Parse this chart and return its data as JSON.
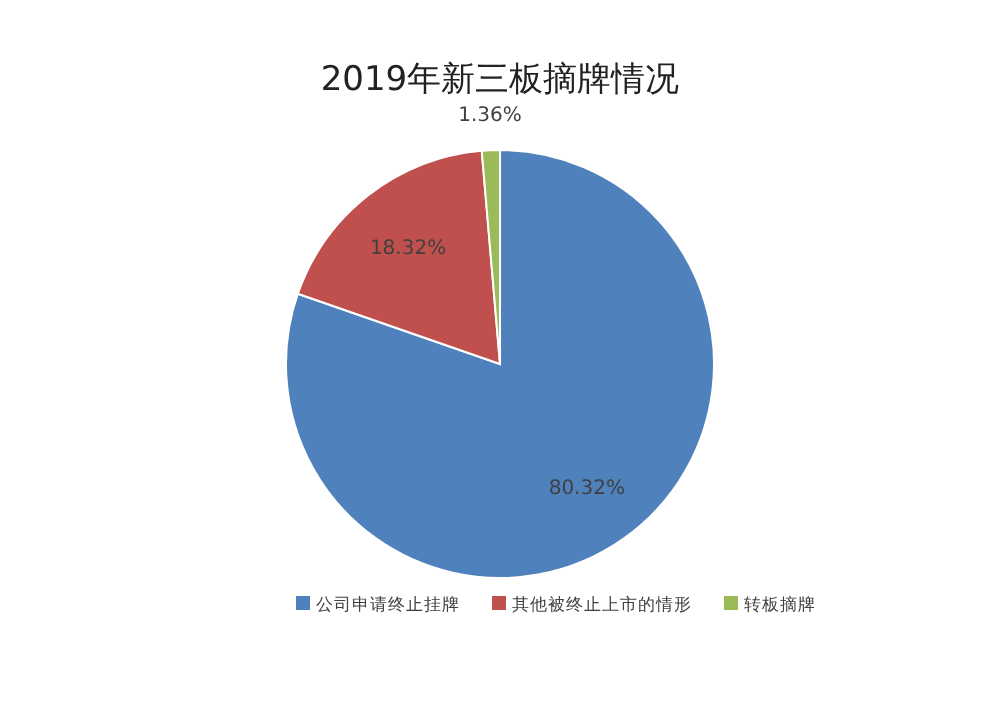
{
  "chart_data": {
    "type": "pie",
    "title": "2019年新三板摘牌情况",
    "categories": [
      "公司申请终止挂牌",
      "其他被终止上市的情形",
      "转板摘牌"
    ],
    "values": [
      80.32,
      18.32,
      1.36
    ],
    "colors": [
      "#4f81bd",
      "#c0504d",
      "#9bbb59"
    ],
    "value_labels": [
      "80.32%",
      "18.32%",
      "1.36%"
    ],
    "legend": "bottom"
  }
}
